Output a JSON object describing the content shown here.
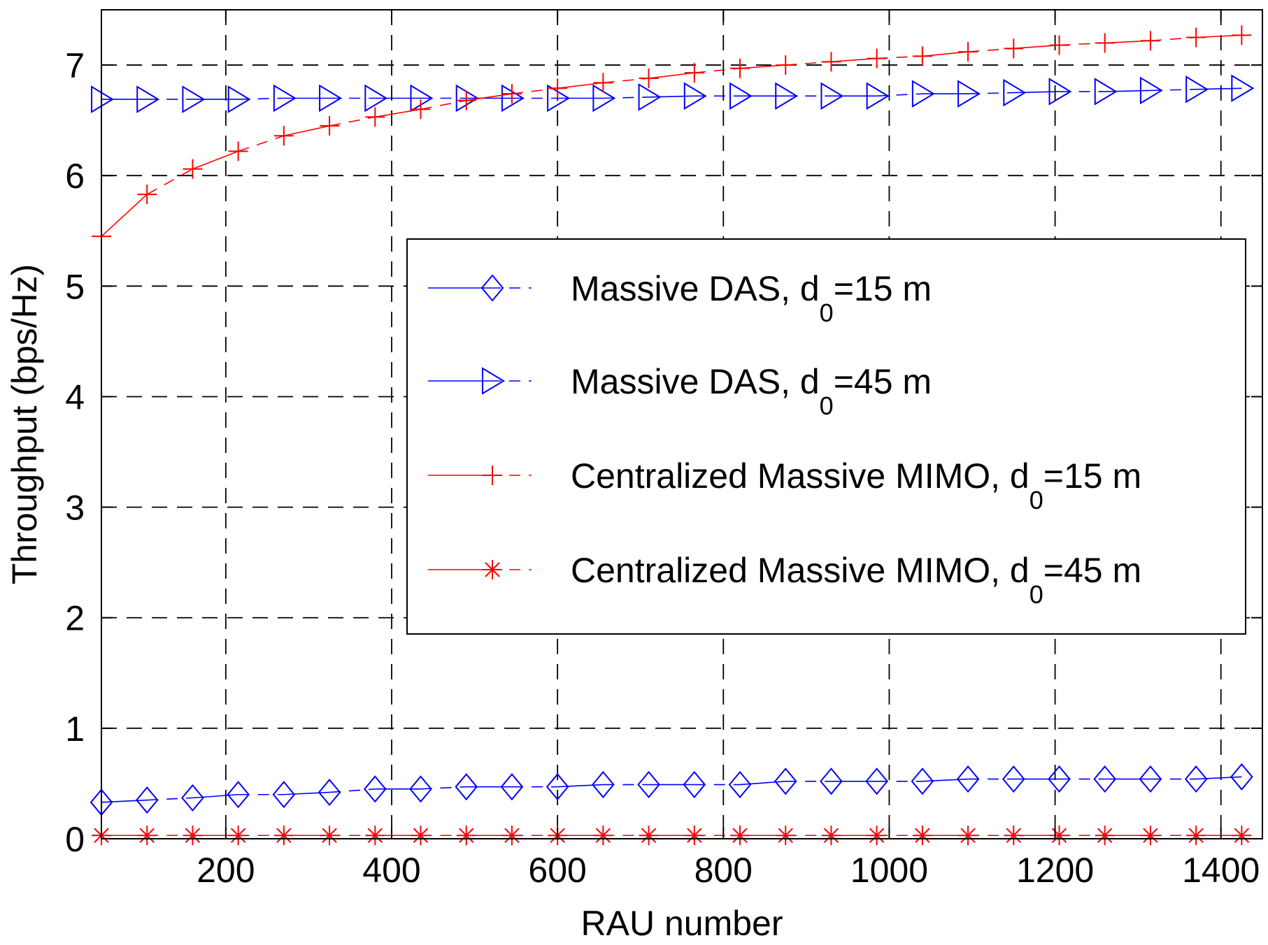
{
  "chart_data": {
    "type": "line",
    "title": "",
    "xlabel": "RAU number",
    "ylabel": "Throughput (bps/Hz)",
    "xlim": [
      50,
      1450
    ],
    "ylim": [
      0,
      7.5
    ],
    "xticks": [
      200,
      400,
      600,
      800,
      1000,
      1200,
      1400
    ],
    "yticks": [
      0,
      1,
      2,
      3,
      4,
      5,
      6,
      7
    ],
    "grid": true,
    "legend_position": "center-right",
    "x": [
      50,
      105,
      160,
      215,
      270,
      325,
      380,
      435,
      490,
      545,
      600,
      655,
      710,
      765,
      820,
      875,
      930,
      985,
      1040,
      1095,
      1150,
      1205,
      1260,
      1315,
      1370,
      1425
    ],
    "series": [
      {
        "name": "Massive DAS, d0=15 m",
        "legend_main": "Massive DAS, d",
        "legend_sub": "0",
        "legend_tail": "=15 m",
        "color": "#0000ff",
        "marker": "diamond",
        "values": [
          0.33,
          0.35,
          0.37,
          0.4,
          0.4,
          0.42,
          0.45,
          0.45,
          0.47,
          0.47,
          0.47,
          0.49,
          0.49,
          0.49,
          0.49,
          0.52,
          0.52,
          0.52,
          0.52,
          0.54,
          0.54,
          0.54,
          0.54,
          0.54,
          0.54,
          0.56
        ]
      },
      {
        "name": "Massive DAS, d0=45 m",
        "legend_main": "Massive DAS, d",
        "legend_sub": "0",
        "legend_tail": "=45 m",
        "color": "#0000ff",
        "marker": "triangle-right",
        "values": [
          6.69,
          6.69,
          6.69,
          6.69,
          6.7,
          6.7,
          6.7,
          6.7,
          6.7,
          6.7,
          6.7,
          6.7,
          6.71,
          6.72,
          6.72,
          6.72,
          6.72,
          6.72,
          6.74,
          6.74,
          6.75,
          6.76,
          6.76,
          6.77,
          6.78,
          6.79
        ]
      },
      {
        "name": "Centralized Massive MIMO, d0=15 m",
        "legend_main": "Centralized Massive MIMO, d",
        "legend_sub": "0",
        "legend_tail": "=15 m",
        "color": "#ff0000",
        "marker": "plus",
        "values": [
          5.45,
          5.83,
          6.06,
          6.22,
          6.36,
          6.45,
          6.53,
          6.6,
          6.68,
          6.74,
          6.79,
          6.84,
          6.88,
          6.93,
          6.97,
          7.0,
          7.03,
          7.06,
          7.08,
          7.12,
          7.15,
          7.18,
          7.2,
          7.22,
          7.25,
          7.27
        ]
      },
      {
        "name": "Centralized Massive MIMO, d0=45 m",
        "legend_main": "Centralized Massive MIMO, d",
        "legend_sub": "0",
        "legend_tail": "=45 m",
        "color": "#ff0000",
        "marker": "star",
        "values": [
          0.03,
          0.03,
          0.03,
          0.03,
          0.03,
          0.03,
          0.03,
          0.03,
          0.03,
          0.03,
          0.03,
          0.03,
          0.03,
          0.03,
          0.03,
          0.03,
          0.03,
          0.03,
          0.03,
          0.03,
          0.03,
          0.03,
          0.03,
          0.03,
          0.03,
          0.03
        ]
      }
    ]
  }
}
